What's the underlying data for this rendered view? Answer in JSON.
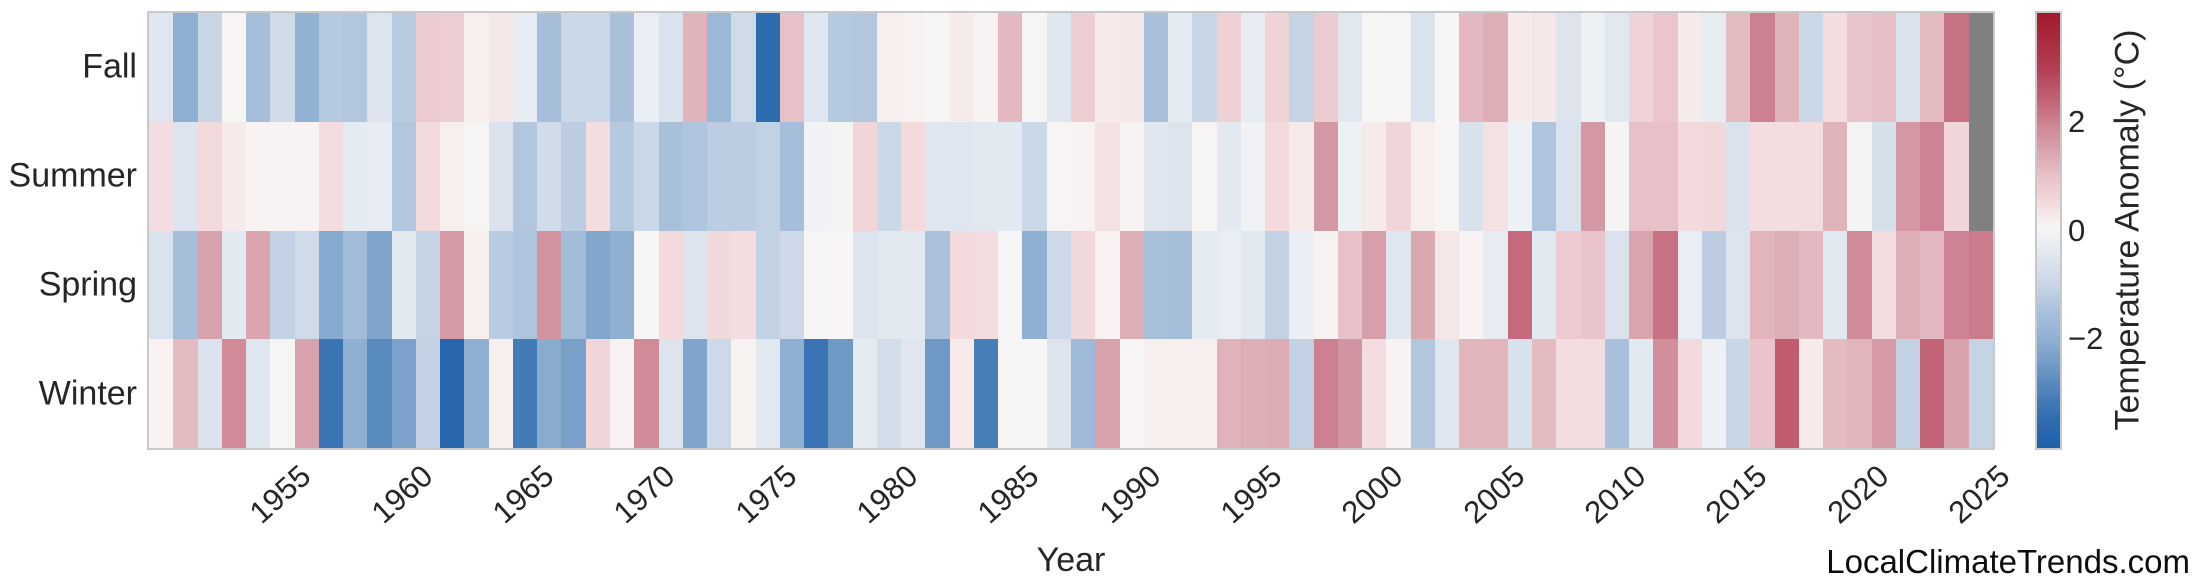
{
  "watermark": "LocalClimateTrends.com",
  "chart_data": {
    "type": "heatmap",
    "title": "",
    "xlabel": "Year",
    "ylabel": "",
    "rows": [
      "Fall",
      "Summer",
      "Spring",
      "Winter"
    ],
    "year_start": 1950,
    "year_end": 2025,
    "x_ticks": [
      "1955",
      "1960",
      "1965",
      "1970",
      "1975",
      "1980",
      "1985",
      "1990",
      "1995",
      "2000",
      "2005",
      "2010",
      "2015",
      "2020",
      "2025"
    ],
    "series": [
      {
        "name": "Fall",
        "values": [
          -0.5,
          -2.0,
          -1.0,
          0.05,
          -1.55,
          -0.85,
          -1.95,
          -1.3,
          -1.35,
          -0.55,
          -1.25,
          0.8,
          0.75,
          0.2,
          0.3,
          -0.3,
          -1.55,
          -0.95,
          -0.95,
          -1.5,
          -0.25,
          -0.6,
          1.25,
          -1.75,
          -0.85,
          -3.5,
          1.0,
          -0.5,
          -1.3,
          -1.35,
          0.2,
          0.15,
          0.05,
          0.25,
          0.1,
          1.15,
          0.05,
          -0.5,
          0.75,
          0.25,
          0.3,
          -1.5,
          -0.35,
          -1.0,
          0.7,
          -0.3,
          0.65,
          -1.05,
          0.8,
          -0.45,
          0.0,
          0.05,
          -0.6,
          0.0,
          1.15,
          1.3,
          0.25,
          0.3,
          -0.55,
          -0.15,
          -0.45,
          0.65,
          0.9,
          0.25,
          -0.3,
          1.1,
          2.0,
          1.25,
          -0.95,
          0.45,
          0.95,
          1.05,
          -0.6,
          1.1,
          2.2,
          null
        ]
      },
      {
        "name": "Summer",
        "values": [
          0.45,
          -0.55,
          0.5,
          0.25,
          0.1,
          0.1,
          0.1,
          0.45,
          -0.35,
          -0.3,
          -1.35,
          0.5,
          0.2,
          0.05,
          -0.6,
          -1.35,
          -0.8,
          -1.2,
          0.45,
          -1.3,
          -0.95,
          -1.5,
          -1.4,
          -1.2,
          -1.2,
          -1.1,
          -1.55,
          -0.1,
          -0.05,
          0.6,
          -0.95,
          0.5,
          -0.5,
          -0.5,
          -0.45,
          -0.4,
          -0.95,
          0.05,
          0.1,
          0.4,
          0.1,
          -0.5,
          -0.55,
          0.05,
          -0.4,
          -0.1,
          0.5,
          0.25,
          1.65,
          -0.15,
          0.25,
          0.6,
          0.2,
          0.05,
          -0.65,
          0.4,
          -0.15,
          -1.4,
          -0.6,
          1.65,
          -0.05,
          1.0,
          1.0,
          0.5,
          0.55,
          -0.6,
          0.45,
          0.45,
          0.45,
          1.25,
          -0.05,
          -0.7,
          1.65,
          1.95,
          0.6,
          null
        ]
      },
      {
        "name": "Spring",
        "values": [
          -0.6,
          -1.55,
          1.5,
          -0.4,
          1.45,
          -1.1,
          -0.85,
          -2.15,
          -1.65,
          -2.25,
          -0.4,
          -1.05,
          1.6,
          0.2,
          -1.25,
          -1.4,
          1.7,
          -1.65,
          -2.2,
          -2.0,
          0.0,
          0.5,
          -0.55,
          0.55,
          0.45,
          -1.1,
          -0.9,
          0.0,
          0.0,
          -0.55,
          -0.4,
          -0.4,
          -1.45,
          0.5,
          0.45,
          0.0,
          -2.0,
          -0.9,
          0.55,
          0.15,
          1.3,
          -1.5,
          -1.6,
          -0.35,
          -0.25,
          -0.45,
          -1.1,
          -0.2,
          0.15,
          1.0,
          1.55,
          -0.5,
          1.4,
          0.3,
          0.1,
          -0.3,
          2.3,
          -0.4,
          0.8,
          0.95,
          -0.6,
          1.45,
          2.2,
          -0.25,
          -1.2,
          -0.55,
          1.2,
          1.3,
          1.15,
          -0.45,
          1.85,
          0.45,
          1.3,
          1.15,
          1.95,
          2.05
        ]
      },
      {
        "name": "Winter",
        "values": [
          0.1,
          1.1,
          -0.6,
          1.85,
          -0.5,
          0.05,
          1.5,
          -3.3,
          -2.0,
          -2.8,
          -2.3,
          -1.1,
          -3.7,
          -2.0,
          0.2,
          -3.15,
          -2.1,
          -2.35,
          0.6,
          0.15,
          1.85,
          -0.55,
          -2.25,
          -0.9,
          0.15,
          -0.4,
          -2.0,
          -3.3,
          -2.5,
          -0.35,
          -0.75,
          -0.5,
          -2.5,
          0.25,
          -3.05,
          0.0,
          0.0,
          -0.55,
          -1.7,
          1.5,
          0.0,
          0.2,
          0.2,
          0.2,
          1.25,
          1.3,
          1.35,
          -1.1,
          2.0,
          1.7,
          0.45,
          0.1,
          -1.35,
          -0.5,
          1.2,
          1.2,
          -0.65,
          1.1,
          0.45,
          0.45,
          -1.5,
          -0.4,
          1.8,
          0.5,
          -0.15,
          -1.0,
          0.95,
          2.5,
          0.25,
          1.1,
          1.2,
          1.6,
          -1.1,
          2.4,
          1.5,
          -1.05
        ]
      }
    ],
    "colorbar": {
      "label": "Temperature Anomaly (°C)",
      "ticks": [
        {
          "label": "2",
          "value": 2
        },
        {
          "label": "0",
          "value": 0
        },
        {
          "label": "−2",
          "value": -2
        }
      ],
      "vmin": -4,
      "vmax": 4,
      "nan_color": "#808080",
      "color_stops": [
        [
          -4.0,
          "#1f60a9"
        ],
        [
          -3.5,
          "#2e6cb0"
        ],
        [
          -3.0,
          "#4c81ba"
        ],
        [
          -2.5,
          "#6f99c5"
        ],
        [
          -2.0,
          "#8fb0d3"
        ],
        [
          -1.5,
          "#a9c0db"
        ],
        [
          -1.0,
          "#c8d6e6"
        ],
        [
          -0.5,
          "#dfe6ef"
        ],
        [
          -0.15,
          "#edf1f6"
        ],
        [
          0.0,
          "#f7f5f5"
        ],
        [
          0.15,
          "#f8f1f1"
        ],
        [
          0.5,
          "#f2dadd"
        ],
        [
          1.0,
          "#e8c1c8"
        ],
        [
          1.5,
          "#d8a2ac"
        ],
        [
          2.0,
          "#cc8090"
        ],
        [
          2.5,
          "#c05c6e"
        ],
        [
          3.0,
          "#b23d52"
        ],
        [
          4.0,
          "#a0182c"
        ]
      ]
    }
  }
}
